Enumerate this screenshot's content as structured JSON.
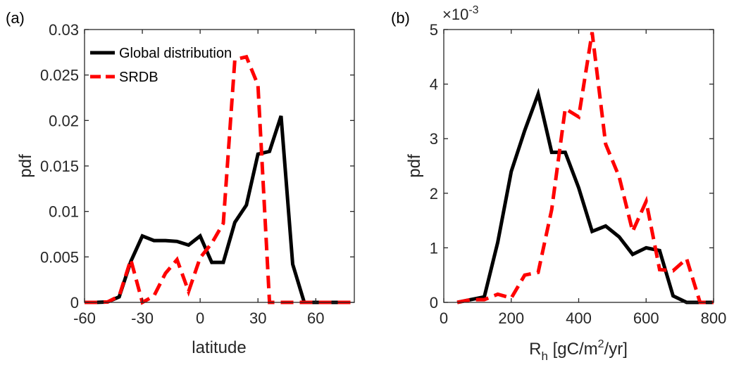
{
  "chart_data": [
    {
      "panel_label": "(a)",
      "type": "line",
      "xlabel": "latitude",
      "ylabel": "pdf",
      "xlim": [
        -60,
        80
      ],
      "ylim": [
        0,
        0.03
      ],
      "xticks": [
        -60,
        -30,
        0,
        30,
        60
      ],
      "xtick_labels": [
        "-60",
        "-30",
        "0",
        "30",
        "60"
      ],
      "yticks": [
        0,
        0.005,
        0.01,
        0.015,
        0.02,
        0.025,
        0.03
      ],
      "ytick_labels": [
        "0",
        "0.005",
        "0.01",
        "0.015",
        "0.02",
        "0.025",
        "0.03"
      ],
      "legend": {
        "placement": "top-left"
      },
      "series": [
        {
          "name": "Global distribution",
          "color": "#000000",
          "style": "solid",
          "x": [
            -60,
            -54,
            -48,
            -42,
            -36,
            -30,
            -24,
            -18,
            -12,
            -6,
            0,
            6,
            12,
            18,
            24,
            30,
            36,
            42,
            48,
            54,
            60,
            66,
            72,
            78
          ],
          "y": [
            0,
            0,
            5e-05,
            0.0006,
            0.0045,
            0.0073,
            0.0068,
            0.0068,
            0.0067,
            0.0063,
            0.0073,
            0.0044,
            0.0044,
            0.0088,
            0.0107,
            0.0163,
            0.0166,
            0.0205,
            0.0042,
            0.0,
            0.0,
            0.0,
            0.0,
            0.0
          ]
        },
        {
          "name": "SRDB",
          "color": "#ff0000",
          "style": "dashed",
          "x": [
            -60,
            -54,
            -48,
            -42,
            -36,
            -30,
            -24,
            -18,
            -12,
            -6,
            0,
            6,
            12,
            18,
            24,
            30,
            36,
            42,
            48,
            54,
            60,
            66,
            72,
            78
          ],
          "y": [
            0,
            0,
            5e-05,
            0.0007,
            0.0047,
            0.0,
            0.0007,
            0.0032,
            0.0047,
            0.0012,
            0.0049,
            0.0065,
            0.0087,
            0.0267,
            0.027,
            0.0239,
            0.0,
            0.0,
            0.0,
            0.0,
            0.0,
            0.0,
            0.0,
            0.0
          ]
        }
      ]
    },
    {
      "panel_label": "(b)",
      "type": "line",
      "xlabel_main": "R",
      "xlabel_sub": "h",
      "xlabel_unit_a": " [gC/m",
      "xlabel_sup": "2",
      "xlabel_unit_b": "/yr]",
      "ylabel": "pdf",
      "exponent_base": "×10",
      "exponent_power": "-3",
      "xlim": [
        0,
        800
      ],
      "ylim": [
        0,
        5
      ],
      "xticks": [
        0,
        200,
        400,
        600,
        800
      ],
      "xtick_labels": [
        "0",
        "200",
        "400",
        "600",
        "800"
      ],
      "yticks": [
        0,
        1,
        2,
        3,
        4,
        5
      ],
      "ytick_labels": [
        "0",
        "1",
        "2",
        "3",
        "4",
        "5"
      ],
      "series": [
        {
          "name": "Global distribution",
          "color": "#000000",
          "style": "solid",
          "x": [
            40,
            80,
            120,
            160,
            200,
            240,
            280,
            320,
            360,
            400,
            440,
            480,
            520,
            560,
            600,
            640,
            680,
            720,
            760,
            800
          ],
          "y": [
            0,
            0.05,
            0.1,
            1.1,
            2.4,
            3.15,
            3.82,
            2.75,
            2.75,
            2.1,
            1.3,
            1.4,
            1.2,
            0.88,
            1.0,
            0.95,
            0.12,
            0.0,
            0.0,
            0.0
          ]
        },
        {
          "name": "SRDB",
          "color": "#ff0000",
          "style": "dashed",
          "x": [
            40,
            80,
            120,
            160,
            200,
            240,
            280,
            320,
            360,
            400,
            440,
            480,
            520,
            560,
            600,
            640,
            680,
            720,
            760,
            800
          ],
          "y": [
            0,
            0.05,
            0.05,
            0.15,
            0.08,
            0.5,
            0.55,
            1.7,
            3.55,
            3.4,
            4.95,
            2.9,
            2.3,
            1.3,
            1.85,
            0.6,
            0.58,
            0.8,
            0.0,
            0.0
          ]
        }
      ]
    }
  ]
}
